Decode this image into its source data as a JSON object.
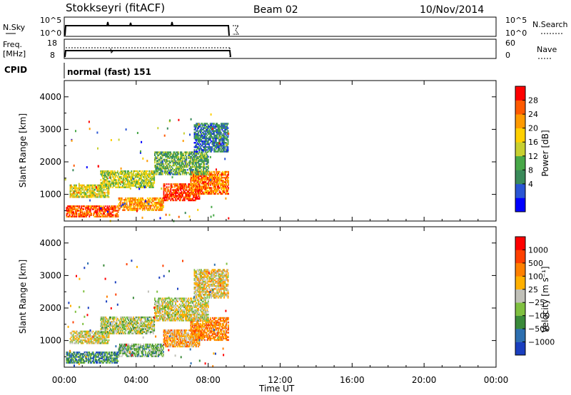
{
  "header": {
    "station": "Stokkseyri (fitACF)",
    "beam": "Beam 02",
    "date": "10/Nov/2014"
  },
  "strips": {
    "nsky_label": "N.Sky",
    "nsky_ticks": [
      "10^5",
      "10^0"
    ],
    "nsearch_label": "N.Search",
    "nsearch_ticks": [
      "10^5",
      "10^0"
    ],
    "freq_label_1": "Freq.",
    "freq_label_2": "[MHz]",
    "freq_ticks": [
      "18",
      "8"
    ],
    "nave_label": "Nave",
    "nave_ticks": [
      "60",
      "0"
    ],
    "cpid_label": "CPID",
    "cpid_value": "normal (fast) 151"
  },
  "x_axis": {
    "label": "Time UT",
    "ticks": [
      "00:00",
      "04:00",
      "08:00",
      "12:00",
      "16:00",
      "20:00",
      "00:00"
    ]
  },
  "chart_data": [
    {
      "type": "heatmap",
      "name": "power",
      "ylabel": "Slant Range [km]",
      "yticks": [
        "1000",
        "2000",
        "3000",
        "4000"
      ],
      "ylim": [
        180,
        4500
      ],
      "xlim": [
        "00:00",
        "24:00"
      ],
      "data_extent_hours": [
        0,
        9.2
      ],
      "colorbar_label": "Power [dB]",
      "colorbar_ticks": [
        "28",
        "24",
        "20",
        "16",
        "12",
        "8",
        "4"
      ],
      "colorbar_colors": [
        "#0000ff",
        "#2a55d4",
        "#3a8a5a",
        "#48a848",
        "#c8d030",
        "#ffd000",
        "#ff9a00",
        "#ff5a00",
        "#ff0000"
      ],
      "bands": [
        {
          "t": [
            0.1,
            3.0
          ],
          "r": [
            300,
            650
          ],
          "level": 0.82
        },
        {
          "t": [
            3.0,
            5.5
          ],
          "r": [
            500,
            900
          ],
          "level": 0.72
        },
        {
          "t": [
            5.5,
            7.5
          ],
          "r": [
            800,
            1300
          ],
          "level": 0.88
        },
        {
          "t": [
            7.0,
            9.1
          ],
          "r": [
            1000,
            1700
          ],
          "level": 0.78
        },
        {
          "t": [
            0.3,
            2.5
          ],
          "r": [
            900,
            1300
          ],
          "level": 0.55
        },
        {
          "t": [
            2.0,
            5.0
          ],
          "r": [
            1200,
            1700
          ],
          "level": 0.5
        },
        {
          "t": [
            5.0,
            8.0
          ],
          "r": [
            1600,
            2300
          ],
          "level": 0.38
        },
        {
          "t": [
            7.2,
            9.1
          ],
          "r": [
            2300,
            3200
          ],
          "level": 0.25
        }
      ]
    },
    {
      "type": "heatmap",
      "name": "velocity",
      "ylabel": "Slant Range [km]",
      "yticks": [
        "1000",
        "2000",
        "3000",
        "4000"
      ],
      "ylim": [
        180,
        4500
      ],
      "xlim": [
        "00:00",
        "24:00"
      ],
      "data_extent_hours": [
        0,
        9.2
      ],
      "colorbar_label": "Velocity [m s⁻¹]",
      "colorbar_ticks": [
        "1000",
        "500",
        "100",
        "25",
        "−25",
        "−100",
        "−500",
        "−1000"
      ],
      "colorbar_colors": [
        "#1a3fbf",
        "#2d6fb0",
        "#3a8a3a",
        "#7fc040",
        "#c0c0b8",
        "#ffb000",
        "#ff8000",
        "#ff4000",
        "#ff0000"
      ],
      "bands": [
        {
          "t": [
            0.1,
            3.0
          ],
          "r": [
            300,
            650
          ],
          "level": 0.25
        },
        {
          "t": [
            3.0,
            5.5
          ],
          "r": [
            500,
            900
          ],
          "level": 0.35
        },
        {
          "t": [
            5.5,
            7.5
          ],
          "r": [
            800,
            1300
          ],
          "level": 0.65
        },
        {
          "t": [
            7.0,
            9.1
          ],
          "r": [
            1000,
            1700
          ],
          "level": 0.7
        },
        {
          "t": [
            0.3,
            2.5
          ],
          "r": [
            900,
            1300
          ],
          "level": 0.5
        },
        {
          "t": [
            2.0,
            5.0
          ],
          "r": [
            1200,
            1700
          ],
          "level": 0.45
        },
        {
          "t": [
            5.0,
            8.0
          ],
          "r": [
            1600,
            2300
          ],
          "level": 0.5
        },
        {
          "t": [
            7.2,
            9.1
          ],
          "r": [
            2300,
            3200
          ],
          "level": 0.55
        }
      ]
    }
  ]
}
